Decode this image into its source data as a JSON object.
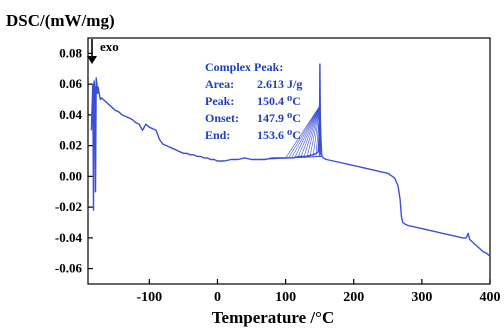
{
  "chart_data": {
    "type": "line",
    "ylabel": "DSC/(mW/mg)",
    "xlabel": "Temperature  /°C",
    "direction_label": "exo",
    "xlim": [
      -190,
      400
    ],
    "ylim": [
      -0.07,
      0.09
    ],
    "x_ticks": [
      -100,
      0,
      100,
      200,
      300,
      400
    ],
    "y_ticks": [
      0.08,
      0.06,
      0.04,
      0.02,
      0.0,
      -0.02,
      -0.04,
      -0.06
    ],
    "y_tick_labels": [
      "0.08",
      "0.06",
      "0.04",
      "0.02",
      "0.00",
      "-0.02",
      "-0.04",
      "-0.06"
    ],
    "series": [
      {
        "color": "#3b4fd6",
        "x": [
          -185,
          -183,
          -182,
          -181,
          -180,
          -179,
          -178,
          -177,
          -176,
          -175,
          -174,
          -172,
          -170,
          -165,
          -160,
          -155,
          -150,
          -145,
          -140,
          -135,
          -130,
          -125,
          -120,
          -115,
          -110,
          -105,
          -100,
          -95,
          -90,
          -85,
          -80,
          -75,
          -70,
          -65,
          -60,
          -55,
          -50,
          -45,
          -40,
          -35,
          -30,
          -25,
          -20,
          -15,
          -10,
          -5,
          0,
          10,
          20,
          30,
          40,
          50,
          60,
          70,
          80,
          90,
          100,
          110,
          120,
          130,
          140,
          145,
          147.9,
          149,
          150,
          150.4,
          151,
          152,
          153.6,
          155,
          160,
          170,
          180,
          190,
          200,
          210,
          220,
          230,
          240,
          250,
          260,
          265,
          268,
          270,
          272,
          275,
          280,
          290,
          300,
          310,
          320,
          330,
          340,
          350,
          360,
          365,
          368,
          370,
          375,
          380,
          385,
          390,
          395,
          400
        ],
        "y": [
          0.03,
          0.06,
          -0.022,
          0.062,
          0.057,
          -0.01,
          0.064,
          0.06,
          0.054,
          0.058,
          0.055,
          0.05,
          0.051,
          0.049,
          0.047,
          0.045,
          0.043,
          0.042,
          0.04,
          0.039,
          0.038,
          0.037,
          0.035,
          0.034,
          0.03,
          0.034,
          0.032,
          0.031,
          0.03,
          0.024,
          0.021,
          0.02,
          0.019,
          0.018,
          0.017,
          0.016,
          0.015,
          0.015,
          0.014,
          0.014,
          0.013,
          0.013,
          0.012,
          0.012,
          0.011,
          0.011,
          0.01,
          0.01,
          0.011,
          0.011,
          0.012,
          0.011,
          0.011,
          0.011,
          0.012,
          0.012,
          0.012,
          0.012,
          0.013,
          0.013,
          0.014,
          0.015,
          0.016,
          0.025,
          0.05,
          0.073,
          0.04,
          0.015,
          0.013,
          0.012,
          0.011,
          0.01,
          0.009,
          0.008,
          0.007,
          0.006,
          0.005,
          0.004,
          0.003,
          0.002,
          -0.001,
          -0.006,
          -0.015,
          -0.026,
          -0.03,
          -0.031,
          -0.032,
          -0.033,
          -0.034,
          -0.035,
          -0.036,
          -0.037,
          -0.038,
          -0.039,
          -0.04,
          -0.04,
          -0.037,
          -0.041,
          -0.043,
          -0.045,
          -0.047,
          -0.049,
          -0.05,
          -0.052
        ]
      }
    ],
    "annotation": {
      "title": "Complex Peak:",
      "rows": [
        {
          "label": "Area:",
          "value": "2.613 J/g"
        },
        {
          "label": "Peak:",
          "value": "150.4  ⁰C"
        },
        {
          "label": "Onset:",
          "value": "147.9 ⁰C"
        },
        {
          "label": "End:",
          "value": "153.6 ⁰C"
        }
      ],
      "peak_x": 150.4,
      "onset_x": 147.9,
      "end_x": 153.6,
      "baseline_start_x": 60,
      "baseline_end_x": 153.6
    },
    "grid": false,
    "legend": "none"
  }
}
